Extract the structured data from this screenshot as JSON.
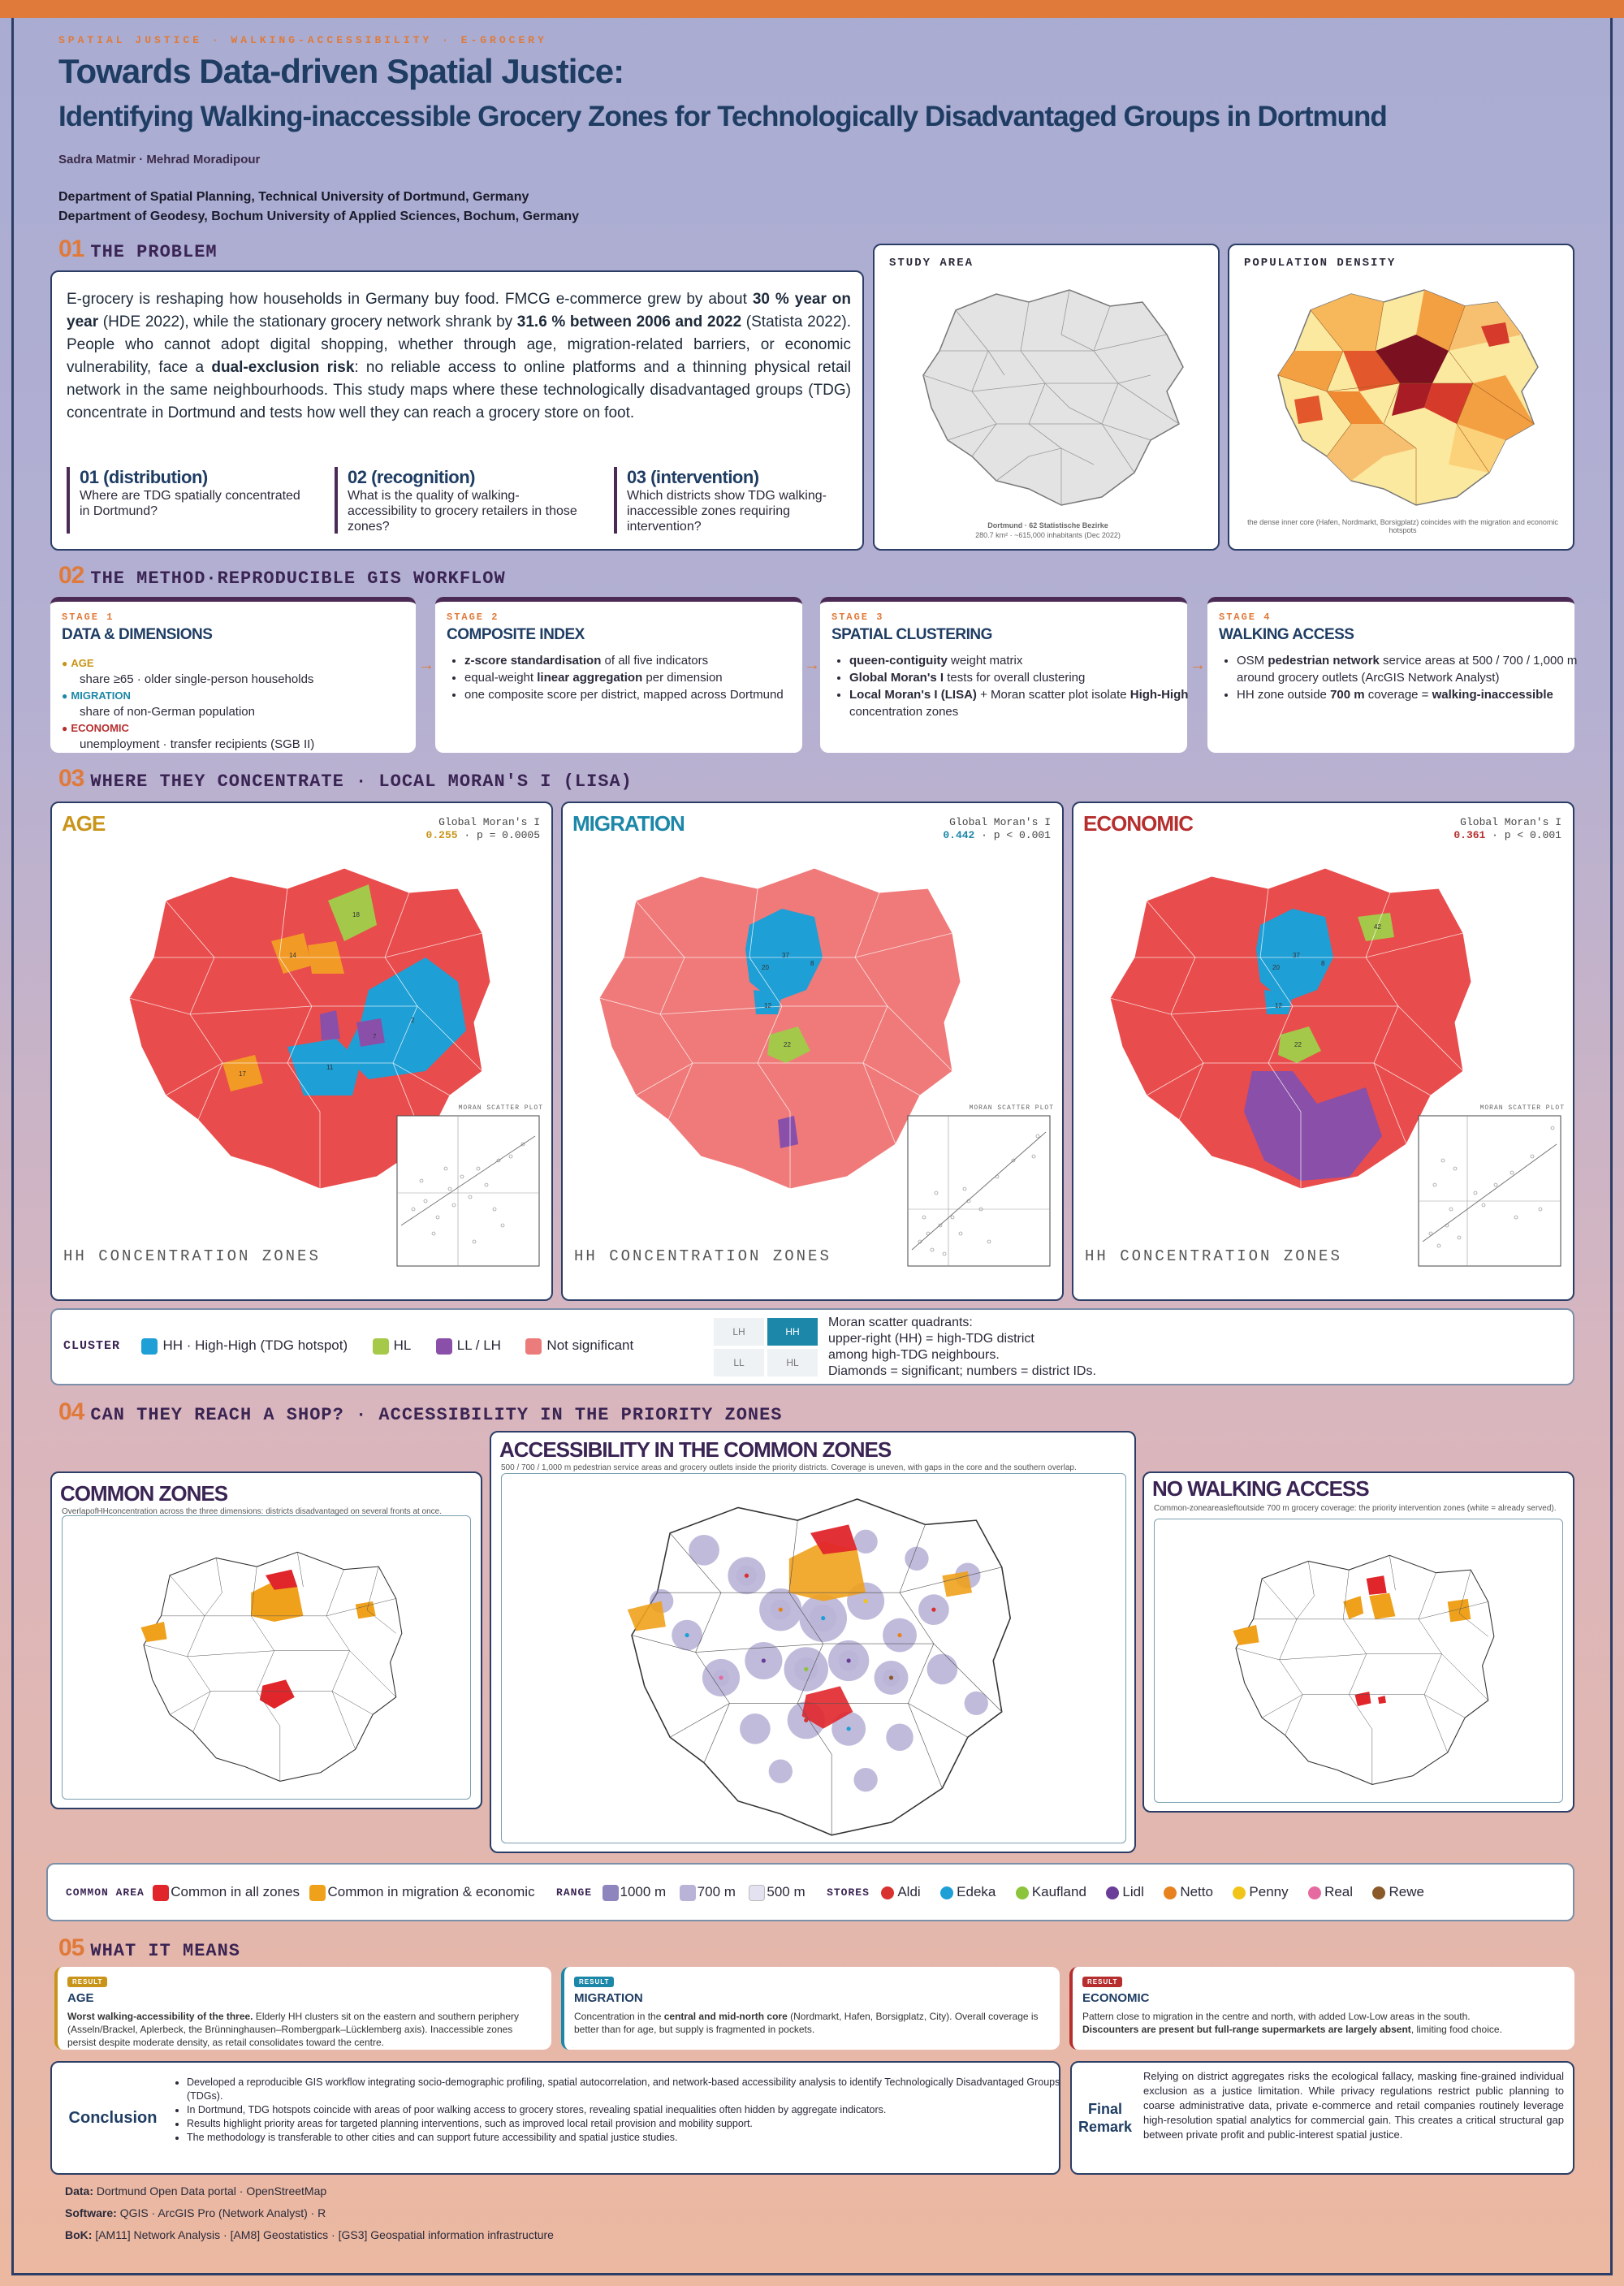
{
  "header": {
    "tag": "SPATIAL JUSTICE · WALKING-ACCESSIBILITY · E-GROCERY",
    "title": "Towards Data-driven Spatial Justice:",
    "subtitle": "Identifying Walking-inaccessible Grocery Zones for Technologically Disadvantaged Groups in Dortmund",
    "authors": "Sadra Matmir · Mehrad Moradipour",
    "dept1": "Department of Spatial Planning, Technical University of Dortmund, Germany",
    "dept2": "Department of Geodesy, Bochum University of Applied Sciences, Bochum, Germany"
  },
  "s1": {
    "num": "01",
    "title": "THE PROBLEM",
    "p1": "E-grocery is reshaping how households in Germany buy food. FMCG e-commerce grew by about ",
    "b1": "30 % year on year",
    "p2": " (HDE 2022), while the stationary grocery network shrank by ",
    "b2": "31.6 % between 2006 and 2022",
    "p3": " (Statista 2022). People who cannot adopt digital shopping, whether through age, migration-related barriers, or economic vulnerability, face a ",
    "b3": "dual-exclusion risk",
    "p4": ": no reliable access to online platforms and a thinning physical retail network in the same neighbourhoods. This study maps where these technologically disadvantaged groups (TDG) concentrate in Dortmund and tests how well they can reach a grocery store on foot.",
    "questions": [
      {
        "h": "01 (distribution)",
        "t": "Where are TDG spatially concentrated in Dortmund?"
      },
      {
        "h": "02 (recognition)",
        "t": "What is the quality of walking-accessibility to grocery retailers in those zones?"
      },
      {
        "h": "03 (intervention)",
        "t": "Which districts show TDG walking-inaccessible zones requiring intervention?"
      }
    ],
    "study_area": "STUDY AREA",
    "study_cap1": "Dortmund · 62 Statistische Bezirke",
    "study_cap2": "280.7 km² · ~615,000 inhabitants (Dec 2022)",
    "pop_density": "POPULATION DENSITY",
    "pop_cap": "the dense inner core (Hafen, Nordmarkt, Borsigplatz) coincides with the migration and economic hotspots"
  },
  "s2": {
    "num": "02",
    "title": "THE METHOD·REPRODUCIBLE GIS WORKFLOW",
    "stages": [
      {
        "label": "STAGE 1",
        "title": "DATA & DIMENSIONS"
      },
      {
        "label": "STAGE 2",
        "title": "COMPOSITE INDEX"
      },
      {
        "label": "STAGE 3",
        "title": "SPATIAL CLUSTERING"
      },
      {
        "label": "STAGE 4",
        "title": "WALKING ACCESS"
      }
    ],
    "dims": [
      {
        "name": "AGE",
        "desc": "share ≥65 · older single-person households",
        "color": "#c9941a"
      },
      {
        "name": "MIGRATION",
        "desc": "share of non-German population",
        "color": "#1c87a8"
      },
      {
        "name": "ECONOMIC",
        "desc": "unemployment · transfer recipients (SGB II)",
        "color": "#b62e2e"
      }
    ],
    "stage2": {
      "b1": "z-score standardisation",
      "t1": " of all five indicators",
      "t2a": "equal-weight ",
      "b2": "linear aggregation",
      "t2b": " per dimension",
      "t3": "one composite score per district, mapped across Dortmund"
    },
    "stage3": {
      "b1": "queen-contiguity",
      "t1": " weight matrix",
      "b2": "Global Moran's I",
      "t2": " tests for overall clustering",
      "b3": "Local Moran's I (LISA)",
      "t3a": " + Moran scatter plot isolate ",
      "b3b": "High-High",
      "t3b": " concentration zones"
    },
    "stage4": {
      "t1a": "OSM ",
      "b1": "pedestrian network",
      "t1b": " service areas at 500 / 700 / 1,000 m around grocery outlets (ArcGIS Network Analyst)",
      "t2a": "HH zone outside ",
      "b2": "700 m",
      "t2b": " coverage = ",
      "b2b": "walking-inaccessible"
    }
  },
  "s3": {
    "num": "03",
    "title": "WHERE THEY CONCENTRATE · LOCAL MORAN'S I (LISA)",
    "panels": [
      {
        "name": "AGE",
        "color": "#c9941a",
        "gm_label": "Global Moran's I",
        "gm_value": "0.255",
        "gm_p": "· p = 0.0005"
      },
      {
        "name": "MIGRATION",
        "color": "#1c87a8",
        "gm_label": "Global Moran's I",
        "gm_value": "0.442",
        "gm_p": "· p < 0.001"
      },
      {
        "name": "ECONOMIC",
        "color": "#b62e2e",
        "gm_label": "Global Moran's I",
        "gm_value": "0.361",
        "gm_p": "· p < 0.001"
      }
    ],
    "hh_label": "HH CONCENTRATION ZONES",
    "scatter_label": "MORAN SCATTER PLOT",
    "legend": {
      "label": "CLUSTER",
      "items": [
        {
          "label": "HH · High-High (TDG hotspot)",
          "color": "#1e9fd6"
        },
        {
          "label": "HL",
          "color": "#a6c94a"
        },
        {
          "label": "LL / LH",
          "color": "#8a4fa8"
        },
        {
          "label": "Not significant",
          "color": "#ec7b7b"
        }
      ],
      "quads": [
        "LH",
        "HH",
        "LL",
        "HL"
      ],
      "note1": "Moran scatter quadrants:",
      "note2": "upper-right (HH) = high-TDG district",
      "note3": "among high-TDG neighbours.",
      "note4": "Diamonds = significant; numbers = district IDs."
    }
  },
  "s4": {
    "num": "04",
    "title": "CAN THEY REACH A SHOP? · ACCESSIBILITY IN THE PRIORITY ZONES",
    "common_title": "COMMON ZONES",
    "common_sub": "OverlapofHHconcentration across the three dimensions: districts disadvantaged on several fronts at once.",
    "acc_title": "ACCESSIBILITY IN THE COMMON ZONES",
    "acc_sub": "500 / 700 / 1,000 m pedestrian service areas and grocery outlets inside the priority districts. Coverage is uneven, with gaps in the core and the southern overlap.",
    "nowalk_title": "NO WALKING ACCESS",
    "nowalk_sub": "Common-zoneareasleftoutside 700 m grocery coverage: the priority intervention zones (white = already served).",
    "legend": {
      "common_label": "COMMON AREA",
      "common_items": [
        {
          "label": "Common in all zones",
          "color": "#e0262b"
        },
        {
          "label": "Common in migration & economic",
          "color": "#f0a11c"
        }
      ],
      "range_label": "RANGE",
      "range_items": [
        {
          "label": "1000 m",
          "color": "#8e84be"
        },
        {
          "label": "700 m",
          "color": "#b9b3d8"
        },
        {
          "label": "500 m",
          "color": "#e4e1f0"
        }
      ],
      "stores_label": "STORES",
      "stores": [
        {
          "label": "Aldi",
          "color": "#d93030"
        },
        {
          "label": "Edeka",
          "color": "#1e9fd6"
        },
        {
          "label": "Kaufland",
          "color": "#8cc43c"
        },
        {
          "label": "Lidl",
          "color": "#6a3e98"
        },
        {
          "label": "Netto",
          "color": "#e8821e"
        },
        {
          "label": "Penny",
          "color": "#f0c419"
        },
        {
          "label": "Real",
          "color": "#e46aa0"
        },
        {
          "label": "Rewe",
          "color": "#8a5a2a"
        }
      ]
    }
  },
  "s5": {
    "num": "05",
    "title": "WHAT IT MEANS",
    "results": [
      {
        "badge": "RESULT",
        "name": "AGE",
        "color": "#c9941a",
        "bold": "Worst walking-accessibility of the three.",
        "text": " Elderly HH clusters sit on the eastern and southern periphery (Asseln/Brackel, Aplerbeck, the Brünninghausen–Rombergpark–Lücklemberg axis). Inaccessible zones persist despite moderate density, as retail consolidates toward the centre."
      },
      {
        "badge": "RESULT",
        "name": "MIGRATION",
        "color": "#1c87a8",
        "pre": "Concentration in the ",
        "bold": "central and mid-north core",
        "text": " (Nordmarkt, Hafen, Borsigplatz, City). Overall coverage is better than for age, but supply is fragmented in pockets."
      },
      {
        "badge": "RESULT",
        "name": "ECONOMIC",
        "color": "#b62e2e",
        "text1": "Pattern close to migration in the centre and north, with added Low-Low areas in the south.",
        "bold": "Discounters are present but full-range supermarkets are largely absent",
        "text": ", limiting food choice."
      }
    ],
    "conclusion_title": "Conclusion",
    "conclusion": [
      "Developed a reproducible GIS workflow integrating socio-demographic profiling, spatial autocorrelation, and network-based accessibility analysis to identify Technologically Disadvantaged Groups (TDGs).",
      "In Dortmund, TDG hotspots coincide with areas of poor walking access to grocery stores, revealing spatial inequalities often hidden by aggregate indicators.",
      "Results highlight priority areas for targeted planning interventions, such as improved local retail provision and mobility support.",
      "The methodology is transferable to other cities and can support future accessibility and spatial justice studies."
    ],
    "final_title1": "Final",
    "final_title2": "Remark",
    "final_text": "Relying on district aggregates risks the ecological fallacy, masking fine-grained individual exclusion as a justice limitation. While privacy regulations restrict public planning to coarse administrative data, private e-commerce and retail companies routinely leverage high-resolution spatial analytics for commercial gain. This creates a critical structural gap between private profit and public-interest spatial justice."
  },
  "footer": {
    "data_label": "Data:",
    "data": "Dortmund Open Data portal · OpenStreetMap",
    "software_label": "Software:",
    "software": "QGIS · ArcGIS Pro (Network Analyst) · R",
    "bok_label": "BoK:",
    "bok": "[AM11] Network Analysis · [AM8] Geostatistics · [GS3] Geospatial information infrastructure"
  },
  "colors": {
    "accent": "#e07a3a",
    "navy": "#1f3d63",
    "purple": "#3a2453"
  }
}
